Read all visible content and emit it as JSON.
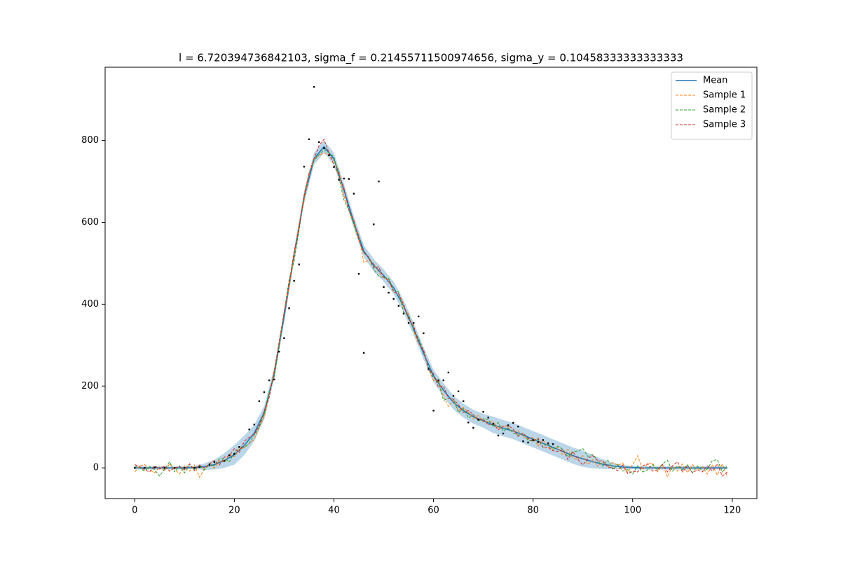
{
  "chart_data": {
    "type": "line",
    "title": "l = 6.720394736842103, sigma_f = 0.21455711500974656, sigma_y = 0.10458333333333333",
    "xlim": [
      -5.95,
      124.95
    ],
    "ylim": [
      -75,
      979
    ],
    "xticks": [
      0,
      20,
      40,
      60,
      80,
      100,
      120
    ],
    "yticks": [
      0,
      200,
      400,
      600,
      800
    ],
    "grid": false,
    "legend": "upper right",
    "x": [
      0,
      1,
      2,
      3,
      4,
      5,
      6,
      7,
      8,
      9,
      10,
      11,
      12,
      13,
      14,
      15,
      16,
      17,
      18,
      19,
      20,
      21,
      22,
      23,
      24,
      25,
      26,
      27,
      28,
      29,
      30,
      31,
      32,
      33,
      34,
      35,
      36,
      37,
      38,
      39,
      40,
      41,
      42,
      43,
      44,
      45,
      46,
      47,
      48,
      49,
      50,
      51,
      52,
      53,
      54,
      55,
      56,
      57,
      58,
      59,
      60,
      61,
      62,
      63,
      64,
      65,
      66,
      67,
      68,
      69,
      70,
      71,
      72,
      73,
      74,
      75,
      76,
      77,
      78,
      79,
      80,
      81,
      82,
      83,
      84,
      85,
      86,
      87,
      88,
      89,
      90,
      91,
      92,
      93,
      94,
      95,
      96,
      97,
      98,
      99,
      100,
      101,
      102,
      103,
      104,
      105,
      106,
      107,
      108,
      109,
      110,
      111,
      112,
      113,
      114,
      115,
      116,
      117,
      118,
      119
    ],
    "band": {
      "color": "#1f77b4",
      "x": [
        0,
        2,
        4,
        6,
        8,
        10,
        12,
        14,
        16,
        18,
        20,
        22,
        24,
        26,
        28,
        30,
        32,
        34,
        36,
        38,
        40,
        42,
        44,
        46,
        48,
        50,
        52,
        54,
        56,
        58,
        60,
        62,
        64,
        66,
        68,
        70,
        72,
        74,
        76,
        78,
        80,
        82,
        84,
        86,
        88,
        90,
        92,
        94,
        96,
        98,
        100,
        102,
        104,
        106,
        108,
        110,
        112,
        114,
        116,
        118,
        119
      ],
      "lower": [
        -4,
        -4,
        -4,
        -4,
        -4,
        -4,
        -3,
        -5,
        -4,
        0,
        8,
        31,
        65,
        119,
        216,
        355,
        505,
        645,
        740,
        770,
        740,
        665,
        585,
        515,
        480,
        455,
        425,
        380,
        325,
        265,
        210,
        173,
        143,
        123,
        108,
        98,
        85,
        77,
        70,
        60,
        50,
        40,
        30,
        20,
        10,
        2,
        -1,
        -3,
        -3,
        -3,
        -3,
        -4,
        -4,
        -4,
        -4,
        -4,
        -4,
        -4,
        -4,
        -4,
        -4
      ],
      "upper": [
        4,
        4,
        4,
        4,
        4,
        4,
        5,
        11,
        20,
        36,
        56,
        79,
        105,
        151,
        244,
        385,
        535,
        675,
        770,
        800,
        770,
        695,
        615,
        545,
        510,
        485,
        455,
        410,
        355,
        295,
        240,
        207,
        177,
        157,
        142,
        132,
        125,
        117,
        110,
        100,
        90,
        80,
        70,
        60,
        50,
        42,
        31,
        21,
        13,
        7,
        5,
        4,
        4,
        4,
        4,
        4,
        4,
        4,
        4,
        4,
        4
      ]
    },
    "series": [
      {
        "name": "Mean",
        "color": "#1f77b4",
        "linestyle": "solid",
        "x": [
          0,
          2,
          4,
          6,
          8,
          10,
          12,
          14,
          16,
          18,
          20,
          22,
          24,
          26,
          28,
          30,
          32,
          34,
          36,
          38,
          40,
          42,
          44,
          46,
          48,
          50,
          52,
          54,
          56,
          58,
          60,
          62,
          64,
          66,
          68,
          70,
          72,
          74,
          76,
          78,
          80,
          82,
          84,
          86,
          88,
          90,
          92,
          94,
          96,
          98,
          100,
          102,
          104,
          106,
          108,
          110,
          112,
          114,
          116,
          118,
          119
        ],
        "values": [
          0,
          0,
          0,
          0,
          0,
          0,
          1,
          3,
          8,
          18,
          32,
          55,
          85,
          135,
          230,
          370,
          520,
          660,
          755,
          785,
          755,
          680,
          600,
          530,
          495,
          470,
          440,
          395,
          340,
          280,
          225,
          190,
          160,
          140,
          125,
          115,
          105,
          97,
          90,
          80,
          70,
          60,
          50,
          40,
          30,
          22,
          15,
          9,
          5,
          2,
          1,
          0,
          0,
          0,
          0,
          0,
          0,
          0,
          0,
          0,
          0
        ]
      },
      {
        "name": "Sample 1",
        "color": "#ff7f0e",
        "linestyle": "dashed",
        "values": [
          -10,
          5,
          8,
          -5,
          -12,
          3,
          -8,
          10,
          -3,
          -15,
          5,
          -8,
          7,
          -23,
          -2,
          7,
          0,
          18,
          14,
          33,
          27,
          46,
          49,
          60,
          70,
          100,
          123,
          175,
          238,
          305,
          380,
          440,
          517,
          595,
          652,
          715,
          755,
          763,
          770,
          765,
          750,
          728,
          665,
          630,
          595,
          570,
          502,
          507,
          500,
          477,
          465,
          458,
          430,
          425,
          392,
          376,
          335,
          304,
          290,
          242,
          213,
          215,
          175,
          150,
          165,
          140,
          148,
          136,
          120,
          128,
          112,
          114,
          113,
          97,
          102,
          96,
          88,
          91,
          76,
          70,
          75,
          53,
          68,
          52,
          45,
          50,
          32,
          45,
          24,
          21,
          30,
          8,
          20,
          4,
          15,
          2,
          13,
          6,
          12,
          -11,
          8,
          30,
          -5,
          10,
          12,
          -10,
          8,
          -22,
          5,
          -8,
          10,
          -12,
          8,
          -5,
          3,
          -15,
          8,
          -18,
          10,
          -22
        ]
      },
      {
        "name": "Sample 2",
        "color": "#2ca02c",
        "linestyle": "dashed",
        "values": [
          5,
          0,
          -8,
          3,
          -5,
          -20,
          -3,
          15,
          -10,
          5,
          -12,
          8,
          -4,
          5,
          -5,
          10,
          5,
          22,
          23,
          15,
          37,
          51,
          50,
          60,
          80,
          100,
          130,
          185,
          222,
          295,
          380,
          460,
          505,
          580,
          665,
          720,
          750,
          765,
          777,
          770,
          760,
          710,
          655,
          630,
          595,
          557,
          525,
          515,
          485,
          468,
          465,
          463,
          435,
          430,
          380,
          373,
          335,
          318,
          285,
          245,
          220,
          210,
          165,
          170,
          168,
          135,
          145,
          122,
          130,
          115,
          120,
          118,
          100,
          111,
          89,
          98,
          85,
          80,
          85,
          67,
          65,
          70,
          50,
          60,
          45,
          53,
          45,
          27,
          40,
          41,
          47,
          28,
          33,
          17,
          4,
          19,
          -3,
          8,
          -8,
          -4,
          -15,
          5,
          -10,
          -5,
          8,
          -5,
          10,
          18,
          -8,
          5,
          -5,
          8,
          -12,
          5,
          -8,
          -3,
          18,
          20,
          -10,
          5
        ]
      },
      {
        "name": "Sample 3",
        "color": "#d62728",
        "linestyle": "dashed",
        "values": [
          8,
          3,
          -5,
          -10,
          5,
          -3,
          5,
          -8,
          0,
          3,
          -5,
          10,
          -7,
          7,
          0,
          10,
          18,
          7,
          26,
          30,
          47,
          38,
          65,
          75,
          82,
          103,
          140,
          172,
          235,
          308,
          380,
          450,
          528,
          585,
          665,
          720,
          755,
          787,
          803,
          770,
          740,
          715,
          685,
          630,
          605,
          557,
          527,
          515,
          490,
          491,
          465,
          460,
          430,
          425,
          400,
          363,
          348,
          305,
          288,
          240,
          230,
          197,
          200,
          170,
          168,
          155,
          135,
          140,
          130,
          117,
          120,
          105,
          108,
          93,
          102,
          103,
          95,
          77,
          85,
          72,
          65,
          73,
          50,
          50,
          42,
          40,
          45,
          20,
          40,
          21,
          7,
          23,
          30,
          17,
          17,
          2,
          0,
          -7,
          7,
          -14,
          -8,
          -10,
          5,
          10,
          -8,
          -5,
          8,
          -10,
          5,
          15,
          -10,
          5,
          -12,
          -5,
          -10,
          5,
          -8,
          10,
          -20,
          -10
        ]
      }
    ],
    "points": {
      "color": "#000000",
      "x": [
        0,
        2,
        4,
        6,
        8,
        10,
        12,
        13,
        15,
        16,
        18,
        19,
        20,
        21,
        23,
        24,
        25,
        26,
        27,
        28,
        29,
        30,
        31,
        32,
        33,
        34,
        35,
        36,
        37,
        38,
        39,
        40,
        41,
        42,
        43,
        44,
        45,
        46,
        48,
        49,
        50,
        51,
        52,
        53,
        54,
        55,
        56,
        57,
        58,
        59,
        60,
        61,
        62,
        63,
        64,
        65,
        66,
        67,
        68,
        69,
        70,
        71,
        72,
        73,
        74,
        75,
        76,
        77,
        78,
        79,
        80,
        81,
        82,
        83,
        84
      ],
      "y": [
        0,
        0,
        1,
        0,
        0,
        0,
        0,
        2,
        8,
        14,
        17,
        31,
        34,
        51,
        94,
        106,
        163,
        185,
        214,
        216,
        284,
        317,
        390,
        457,
        497,
        736,
        803,
        931,
        796,
        781,
        764,
        735,
        704,
        707,
        706,
        670,
        474,
        281,
        595,
        700,
        442,
        428,
        413,
        396,
        377,
        354,
        354,
        370,
        329,
        241,
        140,
        214,
        214,
        233,
        176,
        187,
        163,
        111,
        98,
        118,
        137,
        123,
        108,
        79,
        84,
        104,
        110,
        101,
        65,
        62,
        68,
        63,
        68,
        60,
        58
      ]
    }
  }
}
